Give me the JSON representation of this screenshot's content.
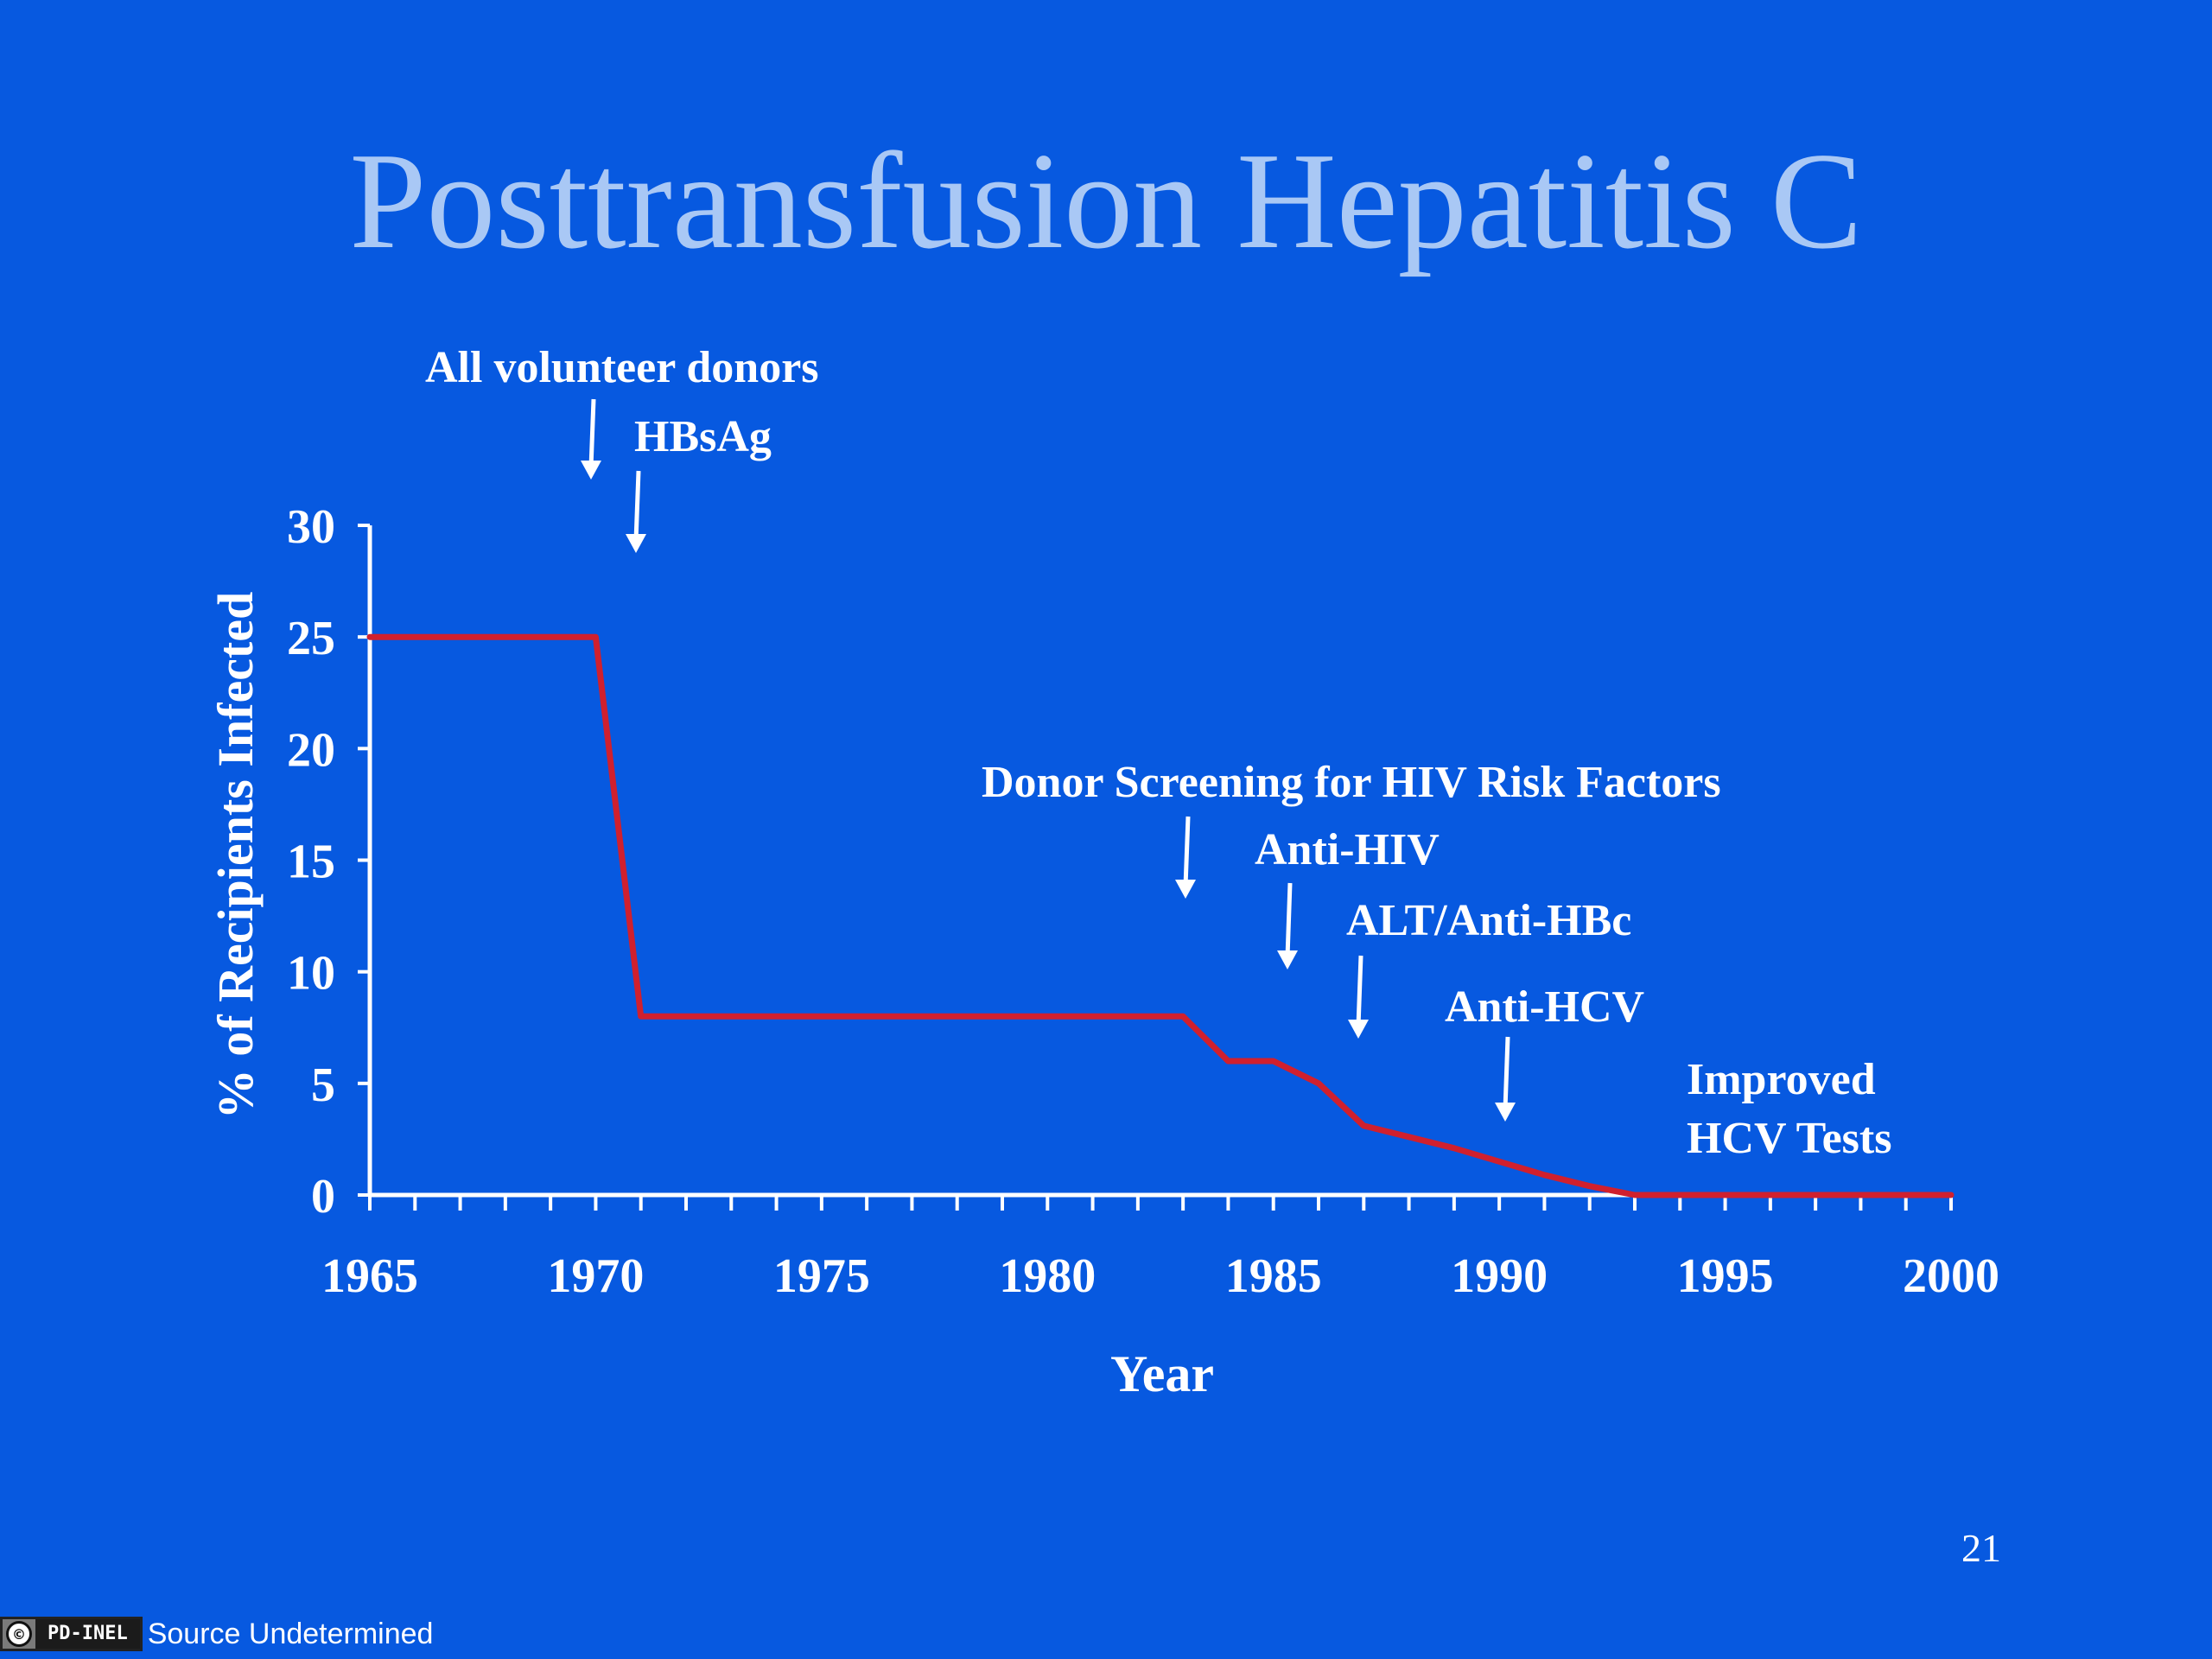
{
  "title": "Posttransfusion Hepatitis C",
  "page_number": "21",
  "license": {
    "icon": "public-domain-icon",
    "code": "PD-INEL",
    "source": "Source Undetermined"
  },
  "colors": {
    "background": "#0759e0",
    "title": "#a9c8f5",
    "line": "#d0202e",
    "text": "#ffffff"
  },
  "chart_data": {
    "type": "line",
    "xlabel": "Year",
    "ylabel": "% of Recipients Infected",
    "xlim": [
      1965,
      2000
    ],
    "ylim": [
      0,
      30
    ],
    "xticks": [
      1965,
      1970,
      1975,
      1980,
      1985,
      1990,
      1995,
      2000
    ],
    "yticks": [
      0,
      5,
      10,
      15,
      20,
      25,
      30
    ],
    "grid": false,
    "series": [
      {
        "x": [
          1965,
          1970,
          1971,
          1983,
          1984,
          1985,
          1986,
          1987,
          1988,
          1989,
          1990,
          1991,
          1992,
          1993,
          2000
        ],
        "y": [
          25,
          25,
          8,
          8,
          6,
          6,
          5,
          3.1,
          2.6,
          2.1,
          1.5,
          0.9,
          0.4,
          0,
          0
        ]
      }
    ],
    "annotations": [
      {
        "text": "All volunteer donors",
        "year": 1970
      },
      {
        "text": "HBsAg",
        "year": 1971
      },
      {
        "text": "Donor Screening for HIV Risk Factors",
        "year": 1983
      },
      {
        "text": "Anti-HIV",
        "year": 1985.3
      },
      {
        "text": "ALT/Anti-HBc",
        "year": 1986.9
      },
      {
        "text": "Anti-HCV",
        "year": 1990.1
      },
      {
        "text": "Improved\nHCV Tests",
        "year": null
      }
    ]
  }
}
